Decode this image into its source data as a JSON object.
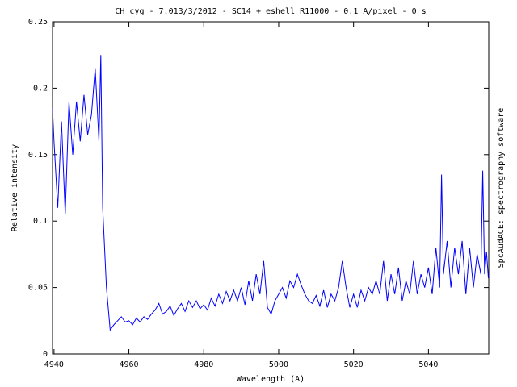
{
  "chart_data": {
    "type": "line",
    "title": "CH cyg - 7.013/3/2012 - SC14 + eshell R11000 - 0.1 A/pixel - 0 s",
    "x_label": "Wavelength (A)",
    "y_label": "Relative intensity",
    "side_note": "SpcAudACE: spectrography software",
    "color": "#0000ff",
    "x": [
      4939.6,
      4940,
      4941,
      4942,
      4943,
      4944,
      4945,
      4946,
      4947,
      4948,
      4949,
      4950,
      4951,
      4952,
      4952.5,
      4953,
      4954,
      4955,
      4956,
      4957,
      4958,
      4959,
      4960,
      4961,
      4962,
      4963,
      4964,
      4965,
      4966,
      4967,
      4968,
      4969,
      4970,
      4971,
      4972,
      4973,
      4974,
      4975,
      4976,
      4977,
      4978,
      4979,
      4980,
      4981,
      4982,
      4983,
      4984,
      4985,
      4986,
      4987,
      4988,
      4989,
      4990,
      4991,
      4992,
      4993,
      4994,
      4995,
      4996,
      4997,
      4998,
      4999,
      5000,
      5001,
      5002,
      5003,
      5004,
      5005,
      5006,
      5007,
      5008,
      5009,
      5010,
      5011,
      5012,
      5013,
      5014,
      5015,
      5016,
      5017,
      5018,
      5019,
      5020,
      5021,
      5022,
      5023,
      5024,
      5025,
      5026,
      5027,
      5028,
      5029,
      5030,
      5031,
      5032,
      5033,
      5034,
      5035,
      5036,
      5037,
      5038,
      5039,
      5040,
      5041,
      5042,
      5043,
      5043.5,
      5044,
      5045,
      5046,
      5047,
      5048,
      5049,
      5050,
      5051,
      5052,
      5053,
      5054,
      5054.5,
      5055,
      5055.5,
      5056
    ],
    "values": [
      0.185,
      0.16,
      0.11,
      0.175,
      0.105,
      0.19,
      0.15,
      0.19,
      0.16,
      0.195,
      0.165,
      0.18,
      0.215,
      0.16,
      0.225,
      0.11,
      0.05,
      0.018,
      0.022,
      0.025,
      0.028,
      0.024,
      0.025,
      0.022,
      0.027,
      0.024,
      0.028,
      0.026,
      0.03,
      0.033,
      0.038,
      0.03,
      0.032,
      0.036,
      0.029,
      0.034,
      0.038,
      0.032,
      0.04,
      0.035,
      0.04,
      0.034,
      0.037,
      0.033,
      0.042,
      0.036,
      0.045,
      0.038,
      0.047,
      0.04,
      0.048,
      0.04,
      0.05,
      0.037,
      0.055,
      0.04,
      0.06,
      0.045,
      0.07,
      0.035,
      0.03,
      0.04,
      0.045,
      0.05,
      0.042,
      0.055,
      0.05,
      0.06,
      0.052,
      0.045,
      0.04,
      0.038,
      0.044,
      0.036,
      0.048,
      0.035,
      0.045,
      0.04,
      0.05,
      0.07,
      0.05,
      0.035,
      0.045,
      0.035,
      0.048,
      0.04,
      0.05,
      0.045,
      0.055,
      0.045,
      0.07,
      0.04,
      0.06,
      0.045,
      0.065,
      0.04,
      0.055,
      0.045,
      0.07,
      0.045,
      0.06,
      0.05,
      0.065,
      0.045,
      0.08,
      0.05,
      0.135,
      0.06,
      0.085,
      0.05,
      0.08,
      0.06,
      0.085,
      0.045,
      0.08,
      0.05,
      0.075,
      0.06,
      0.138,
      0.06,
      0.077,
      0.057
    ],
    "xlim": [
      4939.6,
      5056.1
    ],
    "xticks": [
      4940,
      4960,
      4980,
      5000,
      5020,
      5040
    ],
    "ylim": [
      0,
      0.25
    ],
    "yticks": [
      0,
      0.05,
      0.1,
      0.15,
      0.2,
      0.25
    ]
  }
}
